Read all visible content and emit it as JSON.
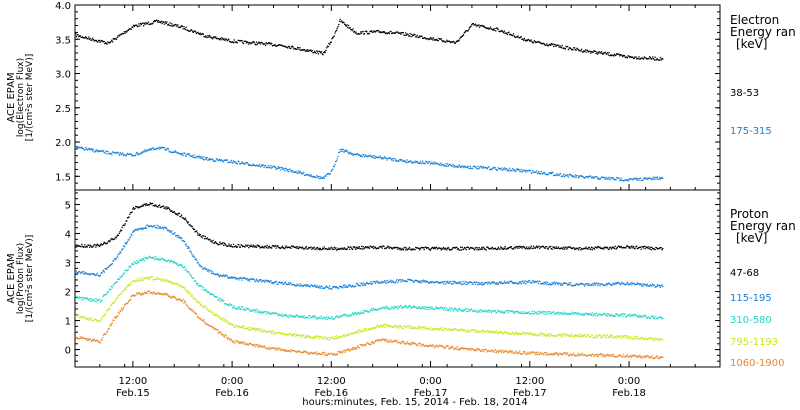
{
  "colors": {
    "black": "#000000",
    "blue": "#1a7fd6",
    "cyan": "#22d3c8",
    "yellow_green": "#c6e81e",
    "yellow": "#e6c814",
    "orange": "#e8872a"
  },
  "xaxis": {
    "tick_labels": [
      {
        "time": "12:00",
        "date": "Feb.15"
      },
      {
        "time": "0:00",
        "date": "Feb.16"
      },
      {
        "time": "12:00",
        "date": "Feb.16"
      },
      {
        "time": "0:00",
        "date": "Feb.17"
      },
      {
        "time": "12:00",
        "date": "Feb.17"
      },
      {
        "time": "0:00",
        "date": "Feb.18"
      }
    ],
    "caption": "hours:minutes, Feb. 15, 2014 - Feb. 18, 2014"
  },
  "chart_data": [
    {
      "type": "scatter",
      "ylabel": [
        "ACE EPAM",
        "log(Electron Flux)",
        "[1/(cm²s ster MeV)]"
      ],
      "ylim": [
        1.3,
        4.0
      ],
      "yticks": [
        "1.5",
        "2.0",
        "2.5",
        "3.0",
        "3.5",
        "4.0"
      ],
      "legend_title": [
        "Electron",
        "Energy ran",
        "[keV]"
      ],
      "x": [
        "Feb.15 05:00",
        "Feb.15 09:00",
        "Feb.15 12:00",
        "Feb.15 15:00",
        "Feb.15 18:00",
        "Feb.15 21:00",
        "Feb.16 00:00",
        "Feb.16 06:00",
        "Feb.16 11:00",
        "Feb.16 12:00",
        "Feb.16 13:00",
        "Feb.16 15:00",
        "Feb.16 18:00",
        "Feb.16 21:00",
        "Feb.17 00:00",
        "Feb.17 03:00",
        "Feb.17 05:00",
        "Feb.17 08:00",
        "Feb.17 12:00",
        "Feb.17 18:00",
        "Feb.18 00:00",
        "Feb.18 04:00"
      ],
      "series": [
        {
          "name": "38-53",
          "color": "#000000",
          "values": [
            3.57,
            3.45,
            3.7,
            3.77,
            3.68,
            3.55,
            3.48,
            3.42,
            3.3,
            3.5,
            3.78,
            3.6,
            3.62,
            3.58,
            3.52,
            3.46,
            3.72,
            3.65,
            3.48,
            3.35,
            3.25,
            3.22
          ]
        },
        {
          "name": "175-315",
          "color": "#1a7fd6",
          "values": [
            1.93,
            1.85,
            1.82,
            1.93,
            1.83,
            1.76,
            1.72,
            1.62,
            1.48,
            1.58,
            1.9,
            1.82,
            1.78,
            1.73,
            1.7,
            1.66,
            1.64,
            1.62,
            1.58,
            1.5,
            1.46,
            1.48
          ]
        }
      ]
    },
    {
      "type": "scatter",
      "ylabel": [
        "ACE EPAM",
        "log(Proton Flux)",
        "[1/(cm²s ster MeV)]"
      ],
      "ylim": [
        -0.6,
        5.5
      ],
      "yticks": [
        "0",
        "1",
        "2",
        "3",
        "4",
        "5"
      ],
      "legend_title": [
        "Proton",
        "Energy ran",
        "[keV]"
      ],
      "x": [
        "Feb.15 05:00",
        "Feb.15 08:00",
        "Feb.15 10:00",
        "Feb.15 12:00",
        "Feb.15 14:00",
        "Feb.15 16:00",
        "Feb.15 18:00",
        "Feb.15 20:00",
        "Feb.15 22:00",
        "Feb.16 00:00",
        "Feb.16 06:00",
        "Feb.16 12:00",
        "Feb.16 18:00",
        "Feb.16 21:00",
        "Feb.17 00:00",
        "Feb.17 06:00",
        "Feb.17 12:00",
        "Feb.17 18:00",
        "Feb.18 00:00",
        "Feb.18 04:00"
      ],
      "series": [
        {
          "name": "47-68",
          "color": "#000000",
          "values": [
            3.6,
            3.6,
            3.9,
            4.9,
            5.05,
            4.9,
            4.6,
            3.95,
            3.7,
            3.6,
            3.55,
            3.5,
            3.55,
            3.5,
            3.5,
            3.5,
            3.55,
            3.5,
            3.55,
            3.5
          ]
        },
        {
          "name": "115-195",
          "color": "#1a7fd6",
          "values": [
            2.7,
            2.6,
            3.2,
            4.1,
            4.3,
            4.2,
            3.8,
            2.9,
            2.6,
            2.5,
            2.3,
            2.15,
            2.35,
            2.4,
            2.35,
            2.3,
            2.35,
            2.25,
            2.3,
            2.2
          ]
        },
        {
          "name": "310-580",
          "color": "#22d3c8",
          "values": [
            1.8,
            1.7,
            2.4,
            3.0,
            3.2,
            3.1,
            2.9,
            2.2,
            1.8,
            1.5,
            1.2,
            1.1,
            1.45,
            1.5,
            1.45,
            1.35,
            1.3,
            1.25,
            1.2,
            1.1
          ]
        },
        {
          "name": "795-1193",
          "color": "#c6e81e",
          "values": [
            1.2,
            1.0,
            1.8,
            2.4,
            2.5,
            2.4,
            2.2,
            1.6,
            1.2,
            0.85,
            0.55,
            0.4,
            0.85,
            0.8,
            0.75,
            0.65,
            0.55,
            0.5,
            0.45,
            0.35
          ]
        },
        {
          "name": "1060-1900",
          "color": "#e8872a",
          "values": [
            0.45,
            0.3,
            1.2,
            1.9,
            2.0,
            1.9,
            1.7,
            1.1,
            0.7,
            0.3,
            0.0,
            -0.15,
            0.35,
            0.25,
            0.15,
            0.0,
            -0.1,
            -0.15,
            -0.2,
            -0.25
          ]
        }
      ]
    }
  ]
}
